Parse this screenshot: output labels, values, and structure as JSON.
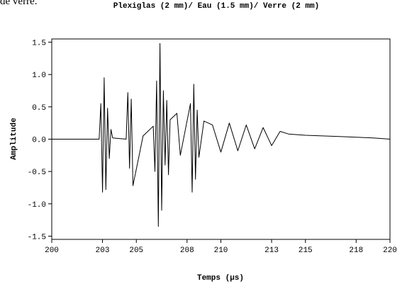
{
  "page": {
    "partial_text": "de verre."
  },
  "chart_data": {
    "type": "line",
    "title": "Plexiglas (2 mm)/ Eau (1.5 mm)/ Verre (2 mm)",
    "xlabel": "Temps (µs)",
    "ylabel": "Amplitude",
    "xlim": [
      200,
      220
    ],
    "ylim": [
      -1.55,
      1.55
    ],
    "x_ticks": [
      200,
      203,
      205,
      208,
      210,
      213,
      215,
      218,
      220
    ],
    "x_tick_labels": [
      "200",
      "203",
      "205",
      "208",
      "210",
      "213",
      "215",
      "218",
      "220"
    ],
    "y_ticks": [
      -1.5,
      -1.0,
      -0.5,
      0.0,
      0.5,
      1.0,
      1.5
    ],
    "y_tick_labels": [
      "-1.5",
      "-1.0",
      "-0.5",
      "0.0",
      "0.5",
      "1.0",
      "1.5"
    ],
    "grid": false,
    "series": [
      {
        "color": "#000000",
        "x": [
          200.0,
          202.8,
          202.9,
          203.0,
          203.1,
          203.2,
          203.3,
          203.4,
          203.5,
          203.6,
          204.4,
          204.5,
          204.6,
          204.7,
          204.8,
          205.4,
          206.0,
          206.1,
          206.2,
          206.3,
          206.4,
          206.5,
          206.6,
          206.7,
          206.8,
          206.9,
          207.0,
          207.4,
          207.6,
          208.2,
          208.3,
          208.4,
          208.5,
          208.6,
          208.7,
          209.0,
          209.5,
          210.0,
          210.5,
          211.0,
          211.5,
          212.0,
          212.5,
          213.0,
          213.5,
          214.0,
          215.0,
          216.0,
          217.0,
          218.0,
          219.0,
          220.0
        ],
        "y": [
          0.0,
          0.0,
          0.55,
          -0.82,
          0.95,
          -0.78,
          0.48,
          -0.3,
          0.15,
          0.02,
          0.0,
          0.72,
          -0.45,
          0.62,
          -0.72,
          0.05,
          0.2,
          -0.5,
          0.9,
          -1.35,
          1.48,
          -1.1,
          0.75,
          -0.4,
          0.6,
          -0.55,
          0.3,
          0.4,
          -0.25,
          0.55,
          -0.82,
          0.85,
          -0.62,
          0.45,
          -0.28,
          0.28,
          0.22,
          -0.2,
          0.25,
          -0.18,
          0.22,
          -0.15,
          0.18,
          -0.1,
          0.12,
          0.08,
          0.06,
          0.05,
          0.04,
          0.03,
          0.02,
          0.0
        ]
      }
    ]
  }
}
